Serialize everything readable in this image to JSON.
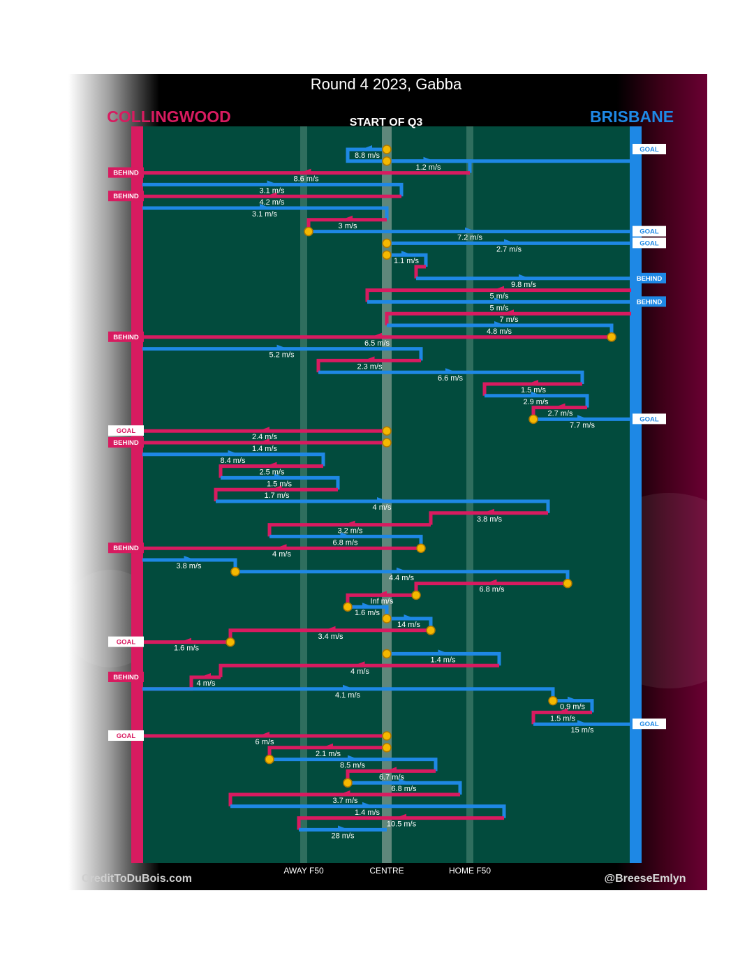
{
  "chart_data": {
    "type": "line",
    "title": "Round 4 2023, Gabba",
    "subtitle": "START OF Q3",
    "teams": {
      "left": {
        "name": "COLLINGWOOD",
        "color": "#d81b60"
      },
      "right": {
        "name": "BRISBANE",
        "color": "#1e88e5"
      }
    },
    "field_color": "#024b3d",
    "marker_color": "#f5b800",
    "x_axis": {
      "range": [
        0,
        100
      ],
      "description": "0 = Collingwood goal end, 100 = Brisbane goal end",
      "ticks": [
        {
          "label": "AWAY F50",
          "x": 33
        },
        {
          "label": "CENTRE",
          "x": 50
        },
        {
          "label": "HOME F50",
          "x": 67
        }
      ]
    },
    "credits": {
      "left": "CreditToDuBois.com",
      "right": "@BreeseEmlyn"
    },
    "chains": [
      {
        "team": "BRISBANE",
        "start": 50,
        "turn": 42,
        "end": 100,
        "speed": "8.8 m/s",
        "outcome": "GOAL"
      },
      {
        "team": "BRISBANE",
        "start": 50,
        "turn": 67,
        "end": 67,
        "speed": "1.2 m/s",
        "outcome": ""
      },
      {
        "team": "COLLINGWOOD",
        "start": 67,
        "end": 0,
        "speed": "8.6 m/s",
        "outcome": "BEHIND"
      },
      {
        "team": "BRISBANE",
        "start": 0,
        "turn": 53,
        "end": 53,
        "speed": "3.1 m/s",
        "outcome": ""
      },
      {
        "team": "COLLINGWOOD",
        "start": 53,
        "end": 0,
        "speed": "4.2 m/s",
        "outcome": "BEHIND"
      },
      {
        "team": "BRISBANE",
        "start": 0,
        "turn": 50,
        "end": 50,
        "speed": "3.1 m/s",
        "outcome": ""
      },
      {
        "team": "COLLINGWOOD",
        "start": 50,
        "turn": 34,
        "end": 34,
        "speed": "3 m/s",
        "outcome": ""
      },
      {
        "team": "BRISBANE",
        "start": 34,
        "end": 100,
        "speed": "7.2 m/s",
        "outcome": "GOAL"
      },
      {
        "team": "BRISBANE",
        "start": 50,
        "end": 100,
        "speed": "2.7 m/s",
        "outcome": "GOAL"
      },
      {
        "team": "BRISBANE",
        "start": 50,
        "turn": 58,
        "end": 58,
        "speed": "1.1 m/s",
        "outcome": ""
      },
      {
        "team": "COLLINGWOOD",
        "start": 58,
        "turn": 56,
        "end": 56,
        "speed": "",
        "outcome": ""
      },
      {
        "team": "BRISBANE",
        "start": 56,
        "end": 100,
        "speed": "9.8 m/s",
        "outcome": "BEHIND"
      },
      {
        "team": "COLLINGWOOD",
        "start": 100,
        "turn": 46,
        "end": 46,
        "speed": "5 m/s",
        "outcome": ""
      },
      {
        "team": "BRISBANE",
        "start": 46,
        "end": 100,
        "speed": "5 m/s",
        "outcome": "BEHIND"
      },
      {
        "team": "COLLINGWOOD",
        "start": 100,
        "turn": 50,
        "end": 50,
        "speed": "7 m/s",
        "outcome": ""
      },
      {
        "team": "BRISBANE",
        "start": 50,
        "turn": 96,
        "end": 96,
        "speed": "4.8 m/s",
        "outcome": ""
      },
      {
        "team": "COLLINGWOOD",
        "start": 96,
        "end": 0,
        "speed": "6.5 m/s",
        "outcome": "BEHIND"
      },
      {
        "team": "BRISBANE",
        "start": 0,
        "turn": 57,
        "end": 57,
        "speed": "5.2 m/s",
        "outcome": ""
      },
      {
        "team": "COLLINGWOOD",
        "start": 57,
        "turn": 36,
        "end": 36,
        "speed": "2.3 m/s",
        "outcome": ""
      },
      {
        "team": "BRISBANE",
        "start": 36,
        "turn": 90,
        "end": 90,
        "speed": "6.6 m/s",
        "outcome": ""
      },
      {
        "team": "COLLINGWOOD",
        "start": 90,
        "turn": 70,
        "end": 70,
        "speed": "1.5 m/s",
        "outcome": ""
      },
      {
        "team": "BRISBANE",
        "start": 70,
        "turn": 91,
        "end": 91,
        "speed": "2.9 m/s",
        "outcome": ""
      },
      {
        "team": "COLLINGWOOD",
        "start": 91,
        "turn": 80,
        "end": 80,
        "speed": "2.7 m/s",
        "outcome": ""
      },
      {
        "team": "BRISBANE",
        "start": 80,
        "end": 100,
        "speed": "7.7 m/s",
        "outcome": "GOAL"
      },
      {
        "team": "COLLINGWOOD",
        "start": 50,
        "end": 0,
        "speed": "2.4 m/s",
        "outcome": "GOAL"
      },
      {
        "team": "COLLINGWOOD",
        "start": 50,
        "end": 0,
        "speed": "1.4 m/s",
        "outcome": "BEHIND"
      },
      {
        "team": "BRISBANE",
        "start": 0,
        "turn": 37,
        "end": 37,
        "speed": "8.4 m/s",
        "outcome": ""
      },
      {
        "team": "COLLINGWOOD",
        "start": 37,
        "turn": 16,
        "end": 16,
        "speed": "2.5 m/s",
        "outcome": ""
      },
      {
        "team": "BRISBANE",
        "start": 16,
        "turn": 40,
        "end": 40,
        "speed": "1.5 m/s",
        "outcome": ""
      },
      {
        "team": "COLLINGWOOD",
        "start": 40,
        "turn": 15,
        "end": 15,
        "speed": "1.7 m/s",
        "outcome": ""
      },
      {
        "team": "BRISBANE",
        "start": 15,
        "turn": 83,
        "end": 83,
        "speed": "4 m/s",
        "outcome": ""
      },
      {
        "team": "COLLINGWOOD",
        "start": 83,
        "turn": 59,
        "end": 59,
        "speed": "3.8 m/s",
        "outcome": ""
      },
      {
        "team": "COLLINGWOOD",
        "start": 59,
        "turn": 26,
        "end": 26,
        "speed": "3.2 m/s",
        "outcome": ""
      },
      {
        "team": "BRISBANE",
        "start": 26,
        "turn": 57,
        "end": 57,
        "speed": "6.8 m/s",
        "outcome": ""
      },
      {
        "team": "COLLINGWOOD",
        "start": 57,
        "end": 0,
        "speed": "4 m/s",
        "outcome": "BEHIND"
      },
      {
        "team": "BRISBANE",
        "start": 0,
        "turn": 19,
        "end": 19,
        "speed": "3.8 m/s",
        "outcome": ""
      },
      {
        "team": "BRISBANE",
        "start": 19,
        "turn": 87,
        "end": 87,
        "speed": "4.4 m/s",
        "outcome": ""
      },
      {
        "team": "COLLINGWOOD",
        "start": 87,
        "turn": 56,
        "end": 56,
        "speed": "6.8 m/s",
        "outcome": ""
      },
      {
        "team": "COLLINGWOOD",
        "start": 56,
        "turn": 42,
        "end": 42,
        "speed": "Inf m/s",
        "outcome": ""
      },
      {
        "team": "BRISBANE",
        "start": 42,
        "turn": 50,
        "end": 50,
        "speed": "1.6 m/s",
        "outcome": ""
      },
      {
        "team": "BRISBANE",
        "start": 50,
        "turn": 59,
        "end": 59,
        "speed": "14 m/s",
        "outcome": ""
      },
      {
        "team": "COLLINGWOOD",
        "start": 59,
        "turn": 18,
        "end": 18,
        "speed": "3.4 m/s",
        "outcome": ""
      },
      {
        "team": "COLLINGWOOD",
        "start": 18,
        "end": 0,
        "speed": "1.6 m/s",
        "outcome": "GOAL"
      },
      {
        "team": "BRISBANE",
        "start": 50,
        "turn": 73,
        "end": 73,
        "speed": "1.4 m/s",
        "outcome": ""
      },
      {
        "team": "COLLINGWOOD",
        "start": 73,
        "turn": 16,
        "end": 16,
        "speed": "4 m/s",
        "outcome": ""
      },
      {
        "team": "COLLINGWOOD",
        "start": 16,
        "turn": 10,
        "end": 0,
        "speed": "4 m/s",
        "outcome": "BEHIND"
      },
      {
        "team": "BRISBANE",
        "start": 0,
        "turn": 84,
        "end": 84,
        "speed": "4.1 m/s",
        "outcome": ""
      },
      {
        "team": "BRISBANE",
        "start": 84,
        "turn": 92,
        "end": 92,
        "speed": "0.9 m/s",
        "outcome": ""
      },
      {
        "team": "COLLINGWOOD",
        "start": 92,
        "turn": 80,
        "end": 80,
        "speed": "1.5 m/s",
        "outcome": ""
      },
      {
        "team": "BRISBANE",
        "start": 80,
        "end": 100,
        "speed": "15 m/s",
        "outcome": "GOAL"
      },
      {
        "team": "COLLINGWOOD",
        "start": 50,
        "end": 0,
        "speed": "6 m/s",
        "outcome": "GOAL"
      },
      {
        "team": "COLLINGWOOD",
        "start": 50,
        "turn": 26,
        "end": 26,
        "speed": "2.1 m/s",
        "outcome": ""
      },
      {
        "team": "BRISBANE",
        "start": 26,
        "turn": 60,
        "end": 60,
        "speed": "8.5 m/s",
        "outcome": ""
      },
      {
        "team": "COLLINGWOOD",
        "start": 60,
        "turn": 42,
        "end": 42,
        "speed": "6.7 m/s",
        "outcome": ""
      },
      {
        "team": "BRISBANE",
        "start": 42,
        "turn": 65,
        "end": 65,
        "speed": "6.8 m/s",
        "outcome": ""
      },
      {
        "team": "COLLINGWOOD",
        "start": 65,
        "turn": 18,
        "end": 18,
        "speed": "3.7 m/s",
        "outcome": ""
      },
      {
        "team": "BRISBANE",
        "start": 18,
        "turn": 74,
        "end": 74,
        "speed": "1.4 m/s",
        "outcome": ""
      },
      {
        "team": "COLLINGWOOD",
        "start": 74,
        "turn": 32,
        "end": 32,
        "speed": "10.5 m/s",
        "outcome": ""
      },
      {
        "team": "BRISBANE",
        "start": 32,
        "end": 50,
        "speed": "28 m/s",
        "outcome": ""
      }
    ],
    "markers": [
      {
        "row": 0,
        "x": 50
      },
      {
        "row": 1,
        "x": 50
      },
      {
        "row": 7,
        "x": 34
      },
      {
        "row": 8,
        "x": 50
      },
      {
        "row": 9,
        "x": 50
      },
      {
        "row": 16,
        "x": 96
      },
      {
        "row": 23,
        "x": 80
      },
      {
        "row": 24,
        "x": 50
      },
      {
        "row": 25,
        "x": 50
      },
      {
        "row": 34,
        "x": 57
      },
      {
        "row": 36,
        "x": 19
      },
      {
        "row": 37,
        "x": 87
      },
      {
        "row": 38,
        "x": 56
      },
      {
        "row": 39,
        "x": 42
      },
      {
        "row": 40,
        "x": 50
      },
      {
        "row": 41,
        "x": 59
      },
      {
        "row": 42,
        "x": 18
      },
      {
        "row": 43,
        "x": 50
      },
      {
        "row": 47,
        "x": 84
      },
      {
        "row": 50,
        "x": 50
      },
      {
        "row": 51,
        "x": 50
      },
      {
        "row": 52,
        "x": 26
      },
      {
        "row": 54,
        "x": 42
      }
    ]
  }
}
